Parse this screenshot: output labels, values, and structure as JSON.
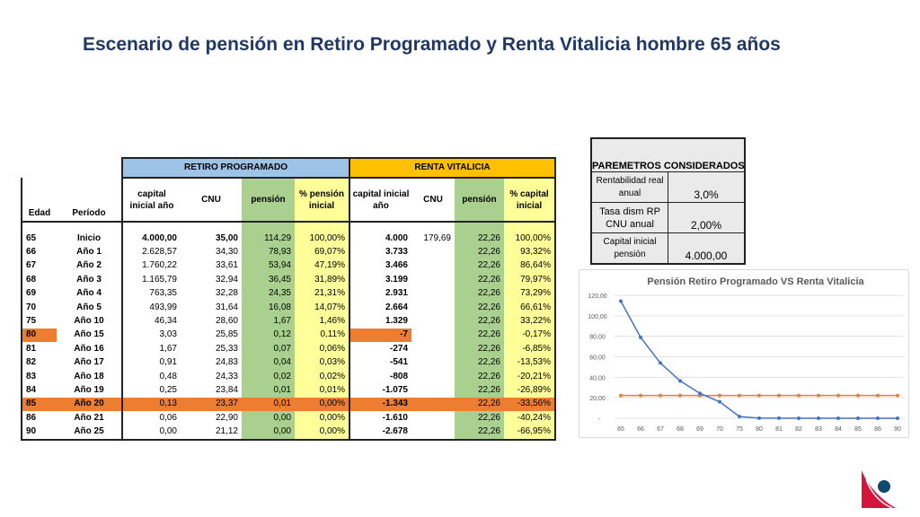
{
  "title": "Escenario de pensión en Retiro Programado y Renta Vitalicia hombre 65 años",
  "table": {
    "group_rp": "RETIRO PROGRAMADO",
    "group_rv": "RENTA VITALICIA",
    "headers": [
      "Edad",
      "Período",
      "capital inicial año",
      "CNU",
      "pensión",
      "% pensión inicial",
      "capital inicial año",
      "CNU",
      "pensión",
      "% capital inicial"
    ],
    "rows": [
      [
        "65",
        "Inicio",
        "4.000,00",
        "35,00",
        "114,29",
        "100,00%",
        "4.000",
        "179,69",
        "22,26",
        "100,00%"
      ],
      [
        "66",
        "Año 1",
        "2.628,57",
        "34,30",
        "78,93",
        "69,07%",
        "3.733",
        "",
        "22,26",
        "93,32%"
      ],
      [
        "67",
        "Año 2",
        "1.760,22",
        "33,61",
        "53,94",
        "47,19%",
        "3.466",
        "",
        "22,26",
        "86,64%"
      ],
      [
        "68",
        "Año 3",
        "1.165,79",
        "32,94",
        "36,45",
        "31,89%",
        "3.199",
        "",
        "22,26",
        "79,97%"
      ],
      [
        "69",
        "Año 4",
        "763,35",
        "32,28",
        "24,35",
        "21,31%",
        "2.931",
        "",
        "22,26",
        "73,29%"
      ],
      [
        "70",
        "Año 5",
        "493,99",
        "31,64",
        "16,08",
        "14,07%",
        "2.664",
        "",
        "22,26",
        "66,61%"
      ],
      [
        "75",
        "Año 10",
        "46,34",
        "28,60",
        "1,67",
        "1,46%",
        "1.329",
        "",
        "22,26",
        "33,22%"
      ],
      [
        "80",
        "Año 15",
        "3,03",
        "25,85",
        "0,12",
        "0,11%",
        "-7",
        "",
        "22,26",
        "-0,17%"
      ],
      [
        "81",
        "Año 16",
        "1,67",
        "25,33",
        "0,07",
        "0,06%",
        "-274",
        "",
        "22,26",
        "-6,85%"
      ],
      [
        "82",
        "Año 17",
        "0,91",
        "24,83",
        "0,04",
        "0,03%",
        "-541",
        "",
        "22,26",
        "-13,53%"
      ],
      [
        "83",
        "Año 18",
        "0,48",
        "24,33",
        "0,02",
        "0,02%",
        "-808",
        "",
        "22,26",
        "-20,21%"
      ],
      [
        "84",
        "Año 19",
        "0,25",
        "23,84",
        "0,01",
        "0,01%",
        "-1.075",
        "",
        "22,26",
        "-26,89%"
      ],
      [
        "85",
        "Año 20",
        "0,13",
        "23,37",
        "0,01",
        "0,00%",
        "-1.343",
        "",
        "22,26",
        "-33,56%"
      ],
      [
        "86",
        "Año 21",
        "0,06",
        "22,90",
        "0,00",
        "0,00%",
        "-1.610",
        "",
        "22,26",
        "-40,24%"
      ],
      [
        "90",
        "Año 25",
        "0,00",
        "21,12",
        "0,00",
        "0,00%",
        "-2.678",
        "",
        "22,26",
        "-66,95%"
      ]
    ],
    "highlight_color": "#ed7d31"
  },
  "params": {
    "title": "PAREMETROS CONSIDERADOS",
    "items": [
      {
        "label": "Rentabilidad real anual",
        "value": "3,0%"
      },
      {
        "label": "Tasa dism RP CNU anual",
        "value": "2,00%"
      },
      {
        "label": "Capital inicial pensión",
        "value": "4.000,00"
      }
    ]
  },
  "chart_data": {
    "type": "line",
    "title": "Pensión Retiro Programado VS Renta Vitalicia",
    "categories": [
      "65",
      "66",
      "67",
      "68",
      "69",
      "70",
      "75",
      "80",
      "81",
      "82",
      "83",
      "84",
      "85",
      "86",
      "90"
    ],
    "series": [
      {
        "color": "#4472c4",
        "values": [
          114.29,
          78.93,
          53.94,
          36.45,
          24.35,
          16.08,
          1.67,
          0.12,
          0.07,
          0.04,
          0.02,
          0.01,
          0.01,
          0,
          0
        ]
      },
      {
        "color": "#ed7d31",
        "values": [
          22.26,
          22.26,
          22.26,
          22.26,
          22.26,
          22.26,
          22.26,
          22.26,
          22.26,
          22.26,
          22.26,
          22.26,
          22.26,
          22.26,
          22.26
        ]
      }
    ],
    "ylim": [
      0,
      120
    ],
    "yticks": [
      "-",
      "20,00",
      "40,00",
      "60,00",
      "80,00",
      "100,00",
      "120,00"
    ],
    "grid": true,
    "legend": "none"
  }
}
